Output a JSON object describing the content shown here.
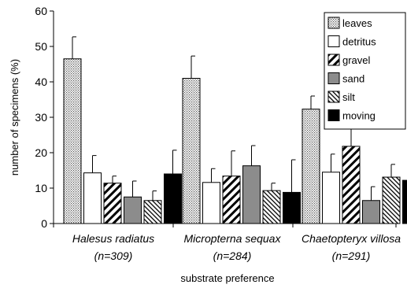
{
  "chart_data": {
    "type": "bar",
    "title": "",
    "xlabel": "substrate preference",
    "ylabel": "number of specimens (%)",
    "ylim": [
      0,
      60
    ],
    "yticks": [
      0,
      10,
      20,
      30,
      40,
      50,
      60
    ],
    "grid": false,
    "legend_position": "top-right",
    "categories": [
      {
        "name": "Halesus radiatus",
        "n": "(n=309)"
      },
      {
        "name": "Micropterna sequax",
        "n": "(n=284)"
      },
      {
        "name": "Chaetopteryx villosa",
        "n": "(n=291)"
      }
    ],
    "series": [
      {
        "name": "leaves",
        "pattern": "dots",
        "values": [
          46.5,
          41,
          32.3
        ],
        "errors": [
          6.2,
          6.3,
          3.7
        ]
      },
      {
        "name": "detritus",
        "pattern": "white",
        "values": [
          14.3,
          11.6,
          14.5
        ],
        "errors": [
          4.9,
          3.9,
          5.1
        ]
      },
      {
        "name": "gravel",
        "pattern": "diag-bold",
        "values": [
          11.4,
          13.4,
          21.8
        ],
        "errors": [
          2.0,
          7.1,
          6.9
        ]
      },
      {
        "name": "sand",
        "pattern": "gray",
        "colors": "#8c8c8c",
        "values": [
          7.5,
          16.3,
          6.5
        ],
        "errors": [
          4.5,
          5.7,
          3.9
        ]
      },
      {
        "name": "silt",
        "pattern": "diag-thin",
        "values": [
          6.5,
          9.3,
          13.1
        ],
        "errors": [
          2.7,
          2.1,
          3.6
        ]
      },
      {
        "name": "moving",
        "pattern": "black",
        "colors": "#000000",
        "values": [
          14,
          8.8,
          12.2
        ],
        "errors": [
          6.7,
          9.2,
          5.6
        ]
      }
    ]
  }
}
